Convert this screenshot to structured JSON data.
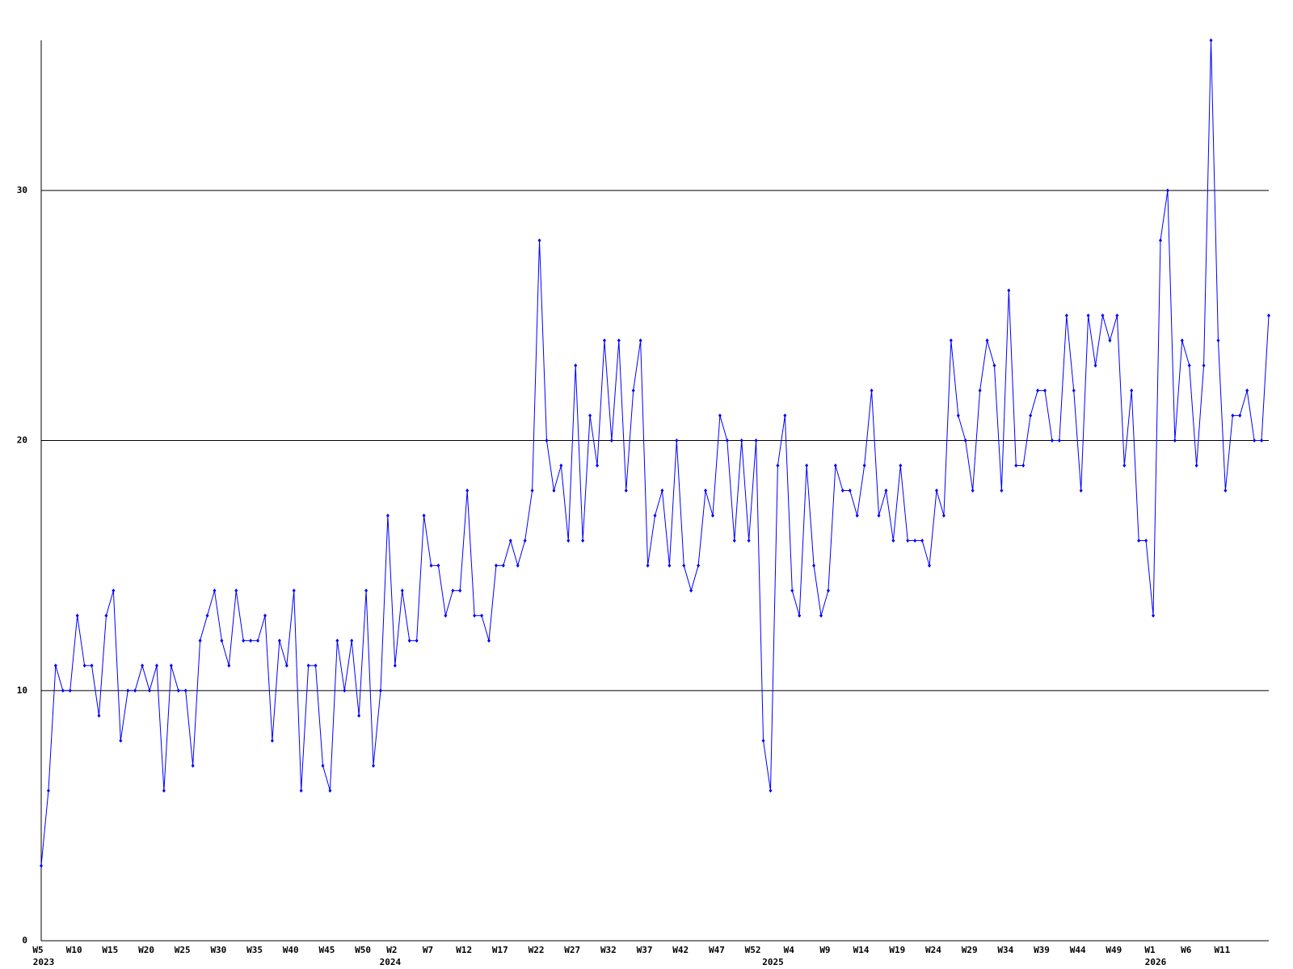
{
  "chart_data": {
    "type": "line",
    "categories": [
      "W5",
      null,
      null,
      null,
      null,
      "W10",
      null,
      null,
      null,
      null,
      "W15",
      null,
      null,
      null,
      null,
      "W20",
      null,
      null,
      null,
      null,
      "W25",
      null,
      null,
      null,
      null,
      "W30",
      null,
      null,
      null,
      null,
      "W35",
      null,
      null,
      null,
      null,
      "W40",
      null,
      null,
      null,
      null,
      "W45",
      null,
      null,
      null,
      null,
      "W50",
      null,
      null,
      null,
      "W2",
      null,
      null,
      null,
      null,
      "W7",
      null,
      null,
      null,
      null,
      "W12",
      null,
      null,
      null,
      null,
      "W17",
      null,
      null,
      null,
      null,
      "W22",
      null,
      null,
      null,
      null,
      "W27",
      null,
      null,
      null,
      null,
      "W32",
      null,
      null,
      null,
      null,
      "W37",
      null,
      null,
      null,
      null,
      "W42",
      null,
      null,
      null,
      null,
      "W47",
      null,
      null,
      null,
      null,
      "W52",
      null,
      null,
      null,
      null,
      "W4",
      null,
      null,
      null,
      null,
      "W9",
      null,
      null,
      null,
      null,
      "W14",
      null,
      null,
      null,
      null,
      "W19",
      null,
      null,
      null,
      null,
      "W24",
      null,
      null,
      null,
      null,
      "W29",
      null,
      null,
      null,
      null,
      "W34",
      null,
      null,
      null,
      null,
      "W39",
      null,
      null,
      null,
      null,
      "W44",
      null,
      null,
      null,
      null,
      "W49",
      null,
      null,
      null,
      null,
      "W1",
      null,
      null,
      null,
      null,
      "W6",
      null,
      null,
      null,
      null,
      "W11",
      null,
      null,
      null,
      null,
      null,
      null
    ],
    "category_years": [
      "2023",
      null,
      null,
      null,
      null,
      null,
      null,
      null,
      null,
      null,
      null,
      null,
      null,
      null,
      null,
      null,
      null,
      null,
      null,
      null,
      null,
      null,
      null,
      null,
      null,
      null,
      null,
      null,
      null,
      null,
      null,
      null,
      null,
      null,
      null,
      null,
      null,
      null,
      null,
      null,
      null,
      null,
      null,
      null,
      null,
      null,
      null,
      null,
      "2024",
      null,
      null,
      null,
      null,
      null,
      null,
      null,
      null,
      null,
      null,
      null,
      null,
      null,
      null,
      null,
      null,
      null,
      null,
      null,
      null,
      null,
      null,
      null,
      null,
      null,
      null,
      null,
      null,
      null,
      null,
      null,
      null,
      null,
      null,
      null,
      null,
      null,
      null,
      null,
      null,
      null,
      null,
      null,
      null,
      null,
      null,
      null,
      null,
      null,
      null,
      null,
      null,
      "2025",
      null,
      null,
      null,
      null,
      null,
      null,
      null,
      null,
      null,
      null,
      null,
      null,
      null,
      null,
      null,
      null,
      null,
      null,
      null,
      null,
      null,
      null,
      null,
      null,
      null,
      null,
      null,
      null,
      null,
      null,
      null,
      null,
      null,
      null,
      null,
      null,
      null,
      null,
      null,
      null,
      null,
      null,
      null,
      null,
      null,
      null,
      null,
      null,
      null,
      null,
      null,
      null,
      "2026",
      null,
      null,
      null,
      null,
      null,
      null,
      null,
      null,
      null,
      null,
      null,
      null,
      null,
      null,
      null,
      null
    ],
    "values": [
      3,
      6,
      11,
      10,
      10,
      13,
      11,
      11,
      9,
      13,
      14,
      8,
      10,
      10,
      11,
      10,
      11,
      6,
      11,
      10,
      10,
      7,
      12,
      13,
      14,
      12,
      11,
      14,
      12,
      12,
      12,
      13,
      8,
      12,
      11,
      14,
      6,
      11,
      11,
      7,
      6,
      12,
      10,
      12,
      9,
      14,
      7,
      10,
      17,
      11,
      14,
      12,
      12,
      17,
      15,
      15,
      13,
      14,
      14,
      18,
      13,
      13,
      12,
      15,
      15,
      16,
      15,
      16,
      18,
      28,
      20,
      18,
      19,
      16,
      23,
      16,
      21,
      19,
      24,
      20,
      24,
      18,
      22,
      24,
      15,
      17,
      18,
      15,
      20,
      15,
      14,
      15,
      18,
      17,
      21,
      20,
      16,
      20,
      16,
      20,
      8,
      6,
      19,
      21,
      14,
      13,
      19,
      15,
      13,
      14,
      19,
      18,
      18,
      17,
      19,
      22,
      17,
      18,
      16,
      19,
      16,
      16,
      16,
      15,
      18,
      17,
      24,
      21,
      20,
      18,
      22,
      24,
      23,
      18,
      26,
      19,
      19,
      21,
      22,
      22,
      20,
      20,
      25,
      22,
      18,
      25,
      23,
      25,
      24,
      25,
      19,
      22,
      16,
      16,
      13,
      28,
      30,
      20,
      24,
      23,
      19,
      23,
      36,
      24,
      18,
      21,
      21,
      22,
      20,
      20,
      25
    ],
    "color": "#0000ff",
    "grid_color": "#000000",
    "ylim": [
      0,
      36
    ],
    "yticks": [
      0,
      10,
      20,
      30
    ],
    "grid": true
  }
}
